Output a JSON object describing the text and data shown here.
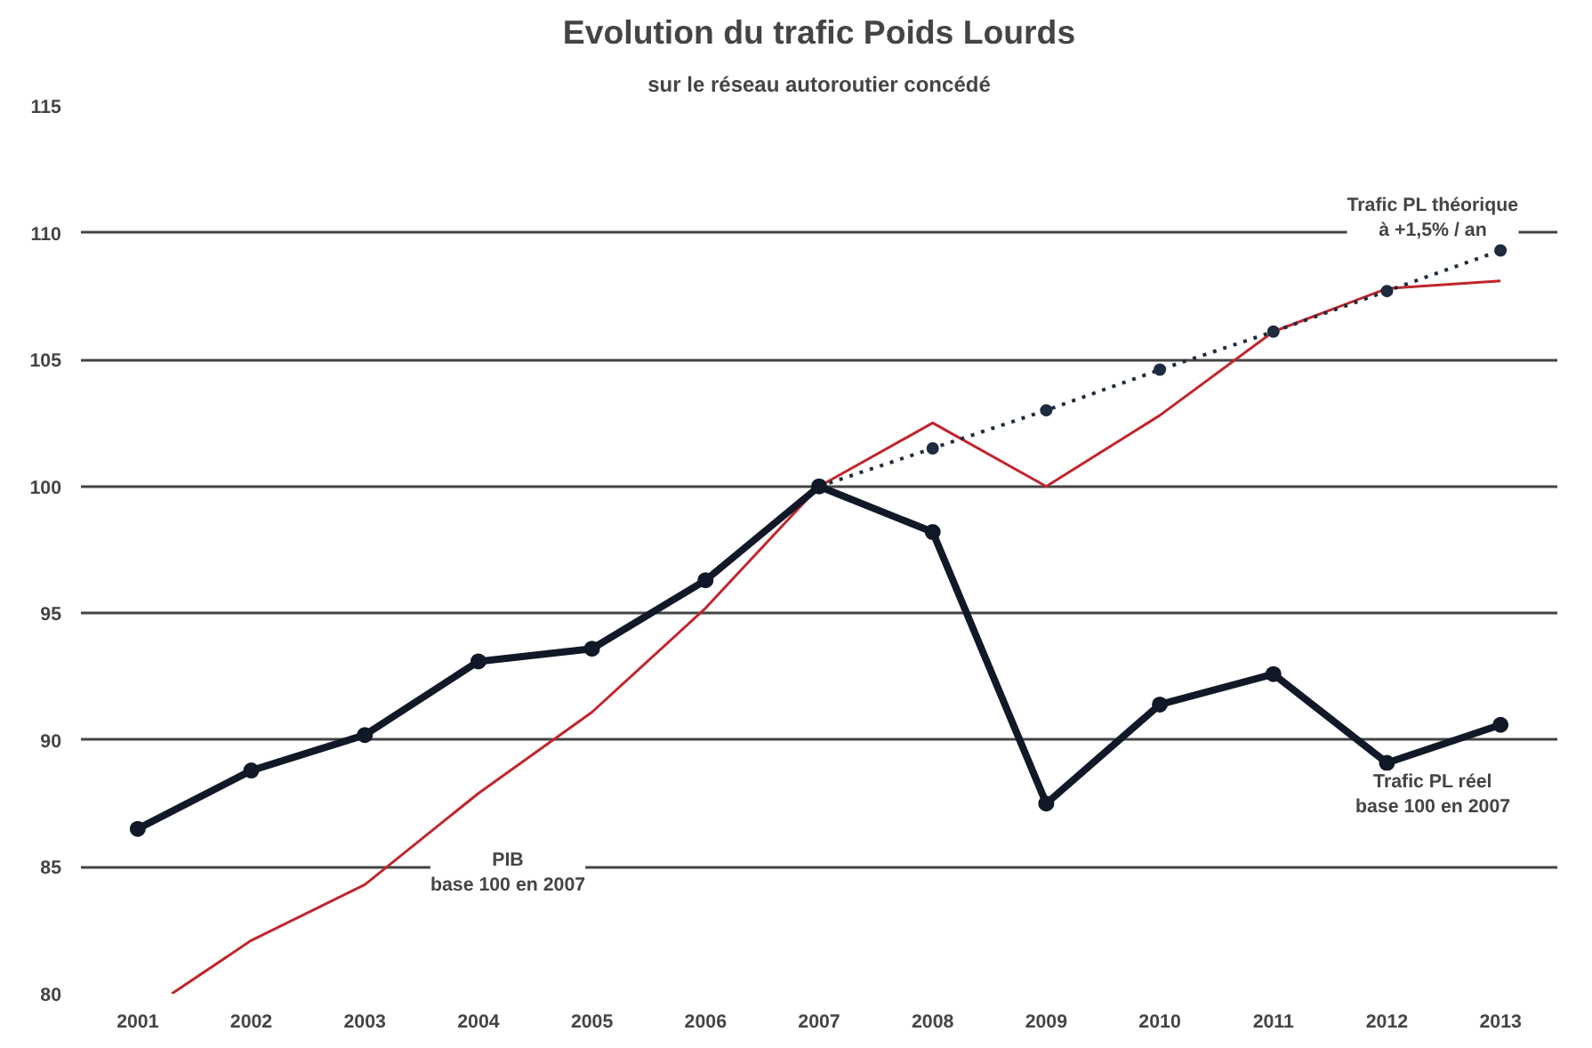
{
  "chart_data": {
    "type": "line",
    "title": "Evolution du trafic Poids Lourds",
    "subtitle": "sur le réseau autoroutier concédé",
    "x": [
      2001,
      2002,
      2003,
      2004,
      2005,
      2006,
      2007,
      2008,
      2009,
      2010,
      2011,
      2012,
      2013
    ],
    "series": [
      {
        "color": "#c0262d",
        "x": [
          2001.3,
          2002,
          2003,
          2004,
          2005,
          2006,
          2007,
          2008,
          2009,
          2010,
          2011,
          2012,
          2013
        ],
        "values": [
          80,
          82.1,
          84.3,
          87.9,
          91.1,
          95.2,
          100,
          102.5,
          100,
          102.8,
          106.1,
          107.8,
          108.1
        ],
        "marker": "none",
        "line_style": "solid"
      },
      {
        "color": "#1f2b3e",
        "x": [
          2007,
          2008,
          2009,
          2010,
          2011,
          2012,
          2013
        ],
        "values": [
          100,
          101.5,
          103.0,
          104.6,
          106.1,
          107.7,
          109.3
        ],
        "marker": "circle",
        "line_style": "dotted"
      },
      {
        "color": "#111827",
        "values": [
          86.5,
          88.8,
          90.2,
          93.1,
          93.6,
          96.3,
          100,
          98.2,
          87.5,
          91.4,
          92.6,
          89.1,
          90.6
        ],
        "marker": "circle",
        "line_style": "solid"
      }
    ],
    "xlim": [
      2000.5,
      2013.5
    ],
    "ylim": [
      80,
      115
    ],
    "xticks": [
      2001,
      2002,
      2003,
      2004,
      2005,
      2006,
      2007,
      2008,
      2009,
      2010,
      2011,
      2012,
      2013
    ],
    "yticks": [
      80,
      85,
      90,
      95,
      100,
      105,
      110,
      115
    ],
    "grid": "y",
    "annotations": [
      "PIB\nbase 100 en 2007",
      "Trafic PL réel\nbase 100 en 2007",
      "Trafic PL théorique\nà +1,5% / an"
    ]
  }
}
